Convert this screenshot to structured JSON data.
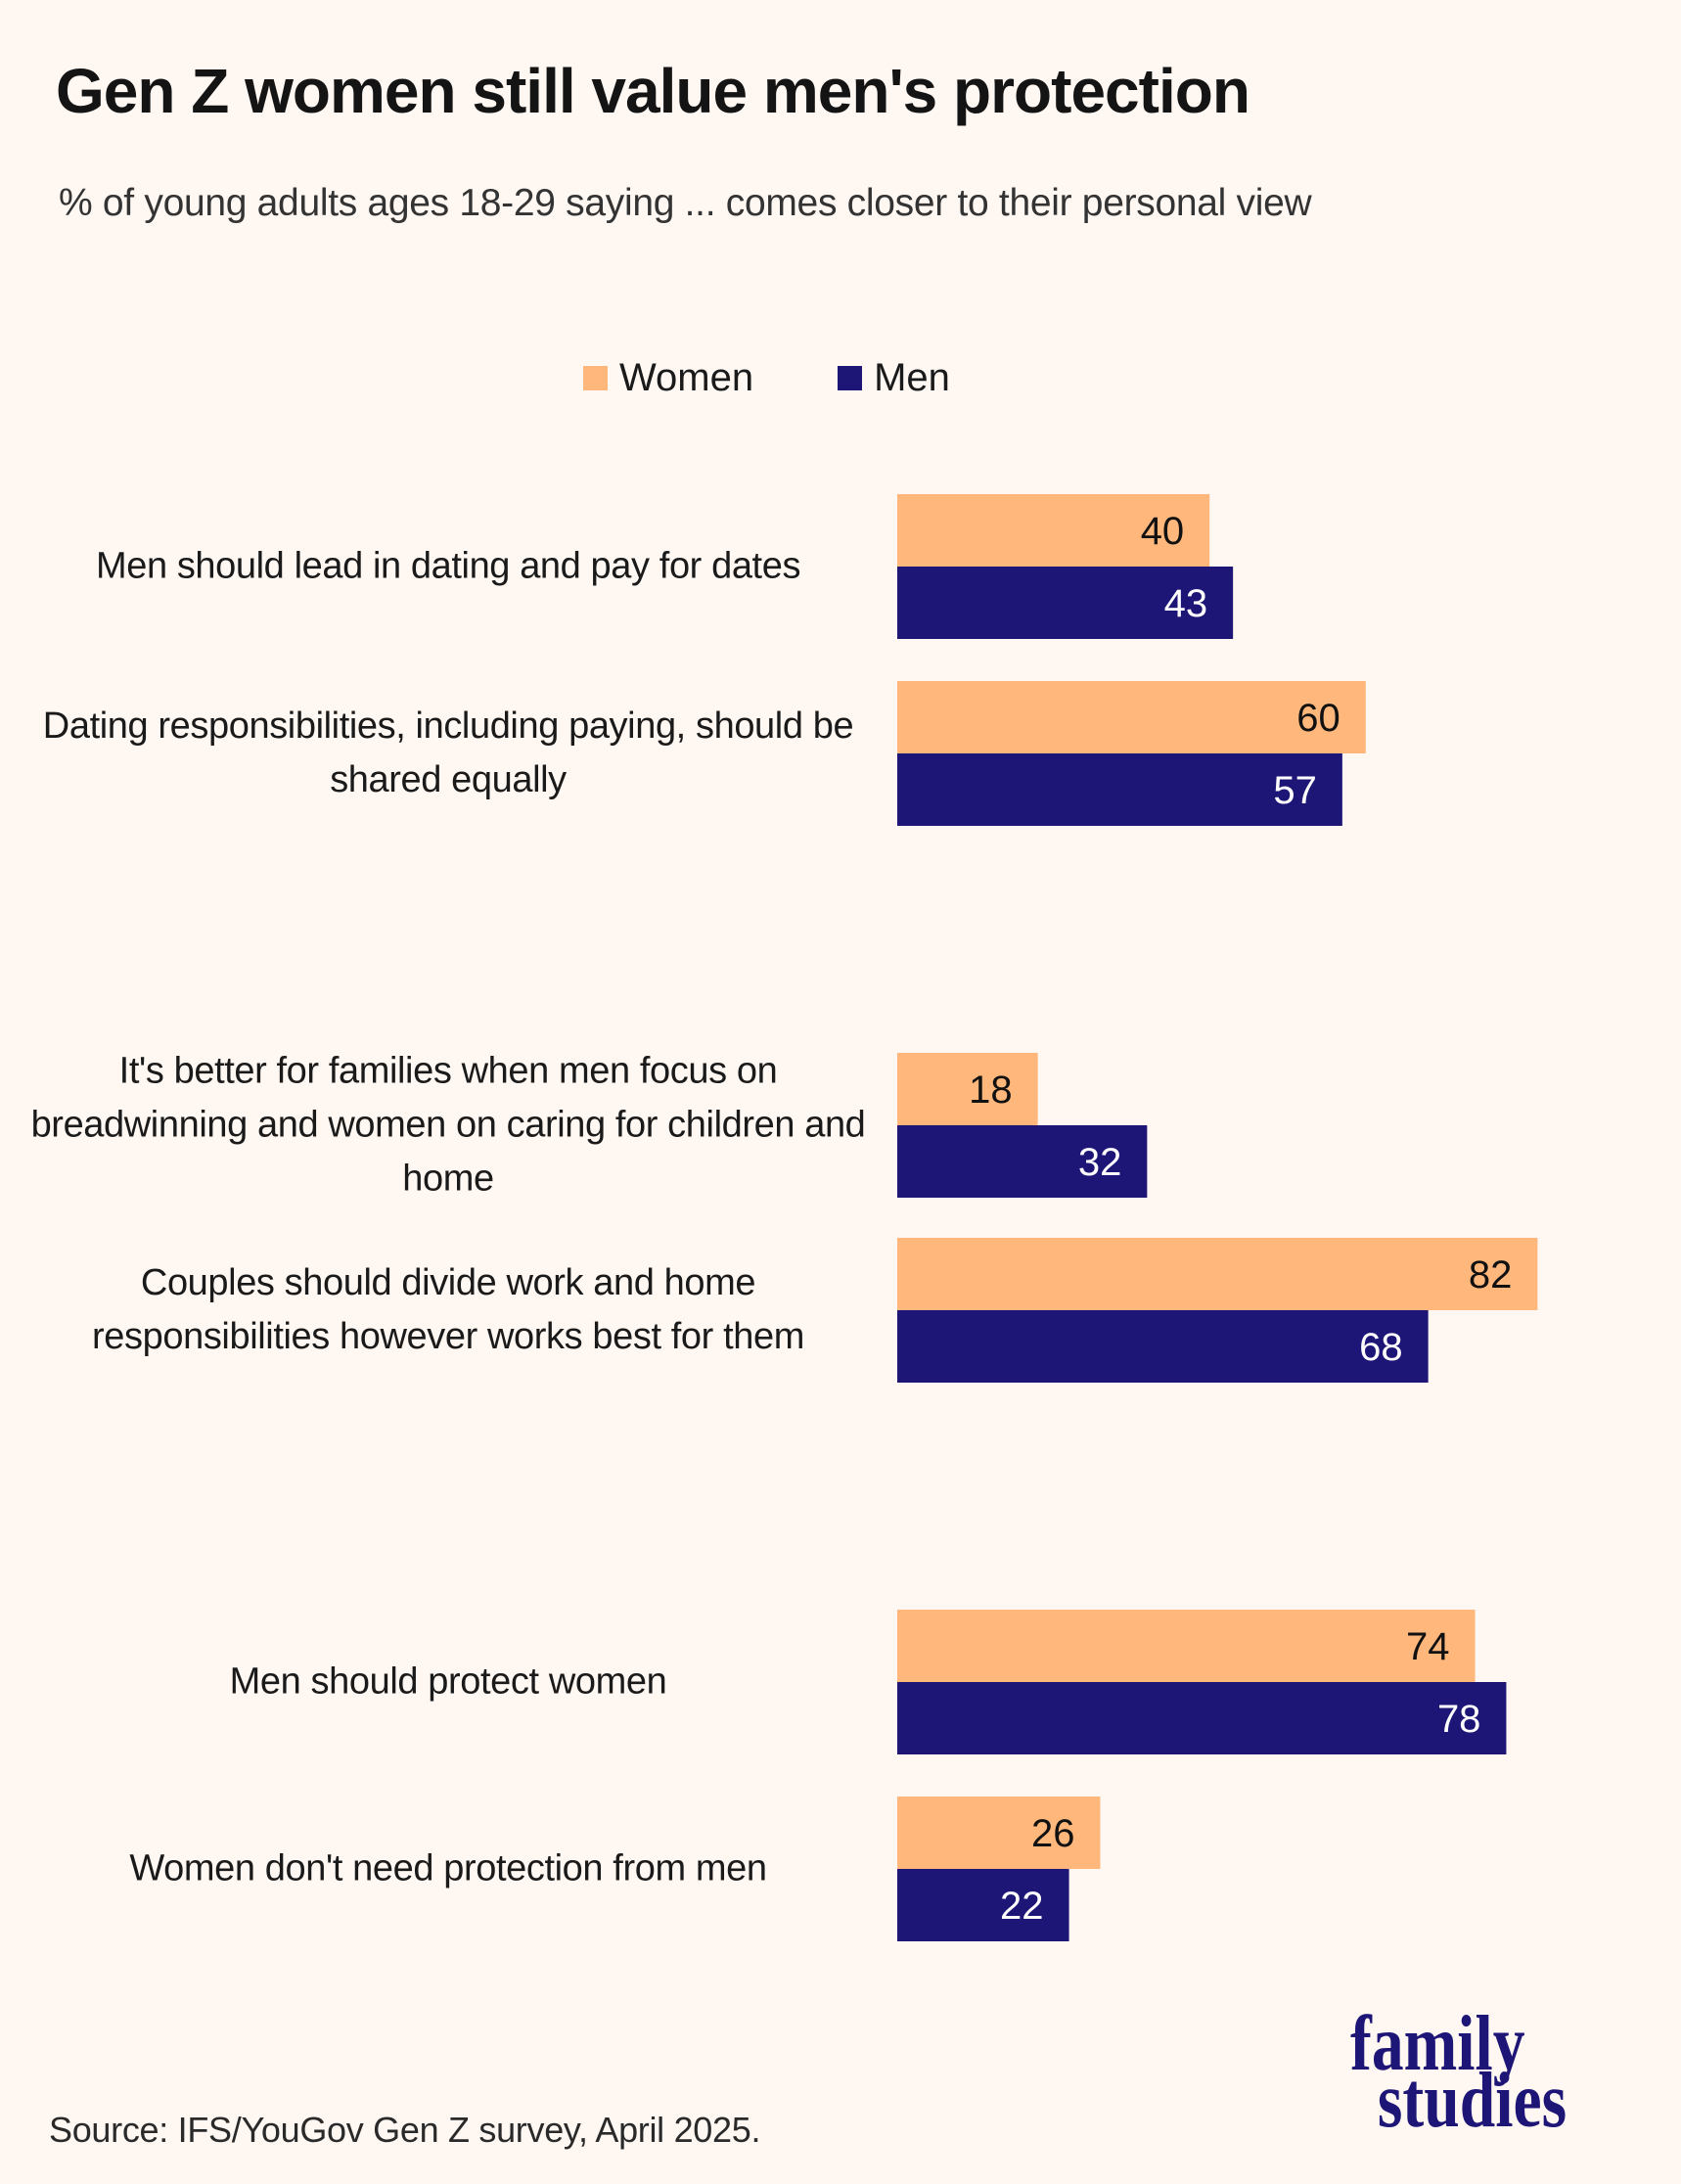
{
  "colors": {
    "background": "#fef7f2",
    "women": "#ffb77c",
    "men": "#1e1676",
    "women_value_text": "#111111",
    "men_value_text": "#ffffff"
  },
  "chart_data": {
    "type": "bar",
    "orientation": "horizontal",
    "title": "Gen Z women still value men's protection",
    "subtitle": "% of young adults ages 18-29 saying ... comes closer to their personal view",
    "legend": {
      "placement": "top-center"
    },
    "xlim": [
      0,
      100
    ],
    "grid": false,
    "categories": [
      "Men should lead in dating and pay for dates",
      "Dating responsibilities, including paying, should be shared equally",
      "It's better for families when men focus on breadwinning and women on caring for children and home",
      "Couples should divide work and home responsibilities however works best for them",
      "Men should protect women",
      "Women don't need protection from men"
    ],
    "series": [
      {
        "name": "Women",
        "color": "#ffb77c",
        "values": [
          40,
          60,
          18,
          82,
          74,
          26
        ]
      },
      {
        "name": "Men",
        "color": "#1e1676",
        "values": [
          43,
          57,
          32,
          68,
          78,
          22
        ]
      }
    ]
  },
  "source": "Source: IFS/YouGov Gen Z survey, April 2025.",
  "logo": {
    "line1": "family",
    "line2": "studies"
  }
}
